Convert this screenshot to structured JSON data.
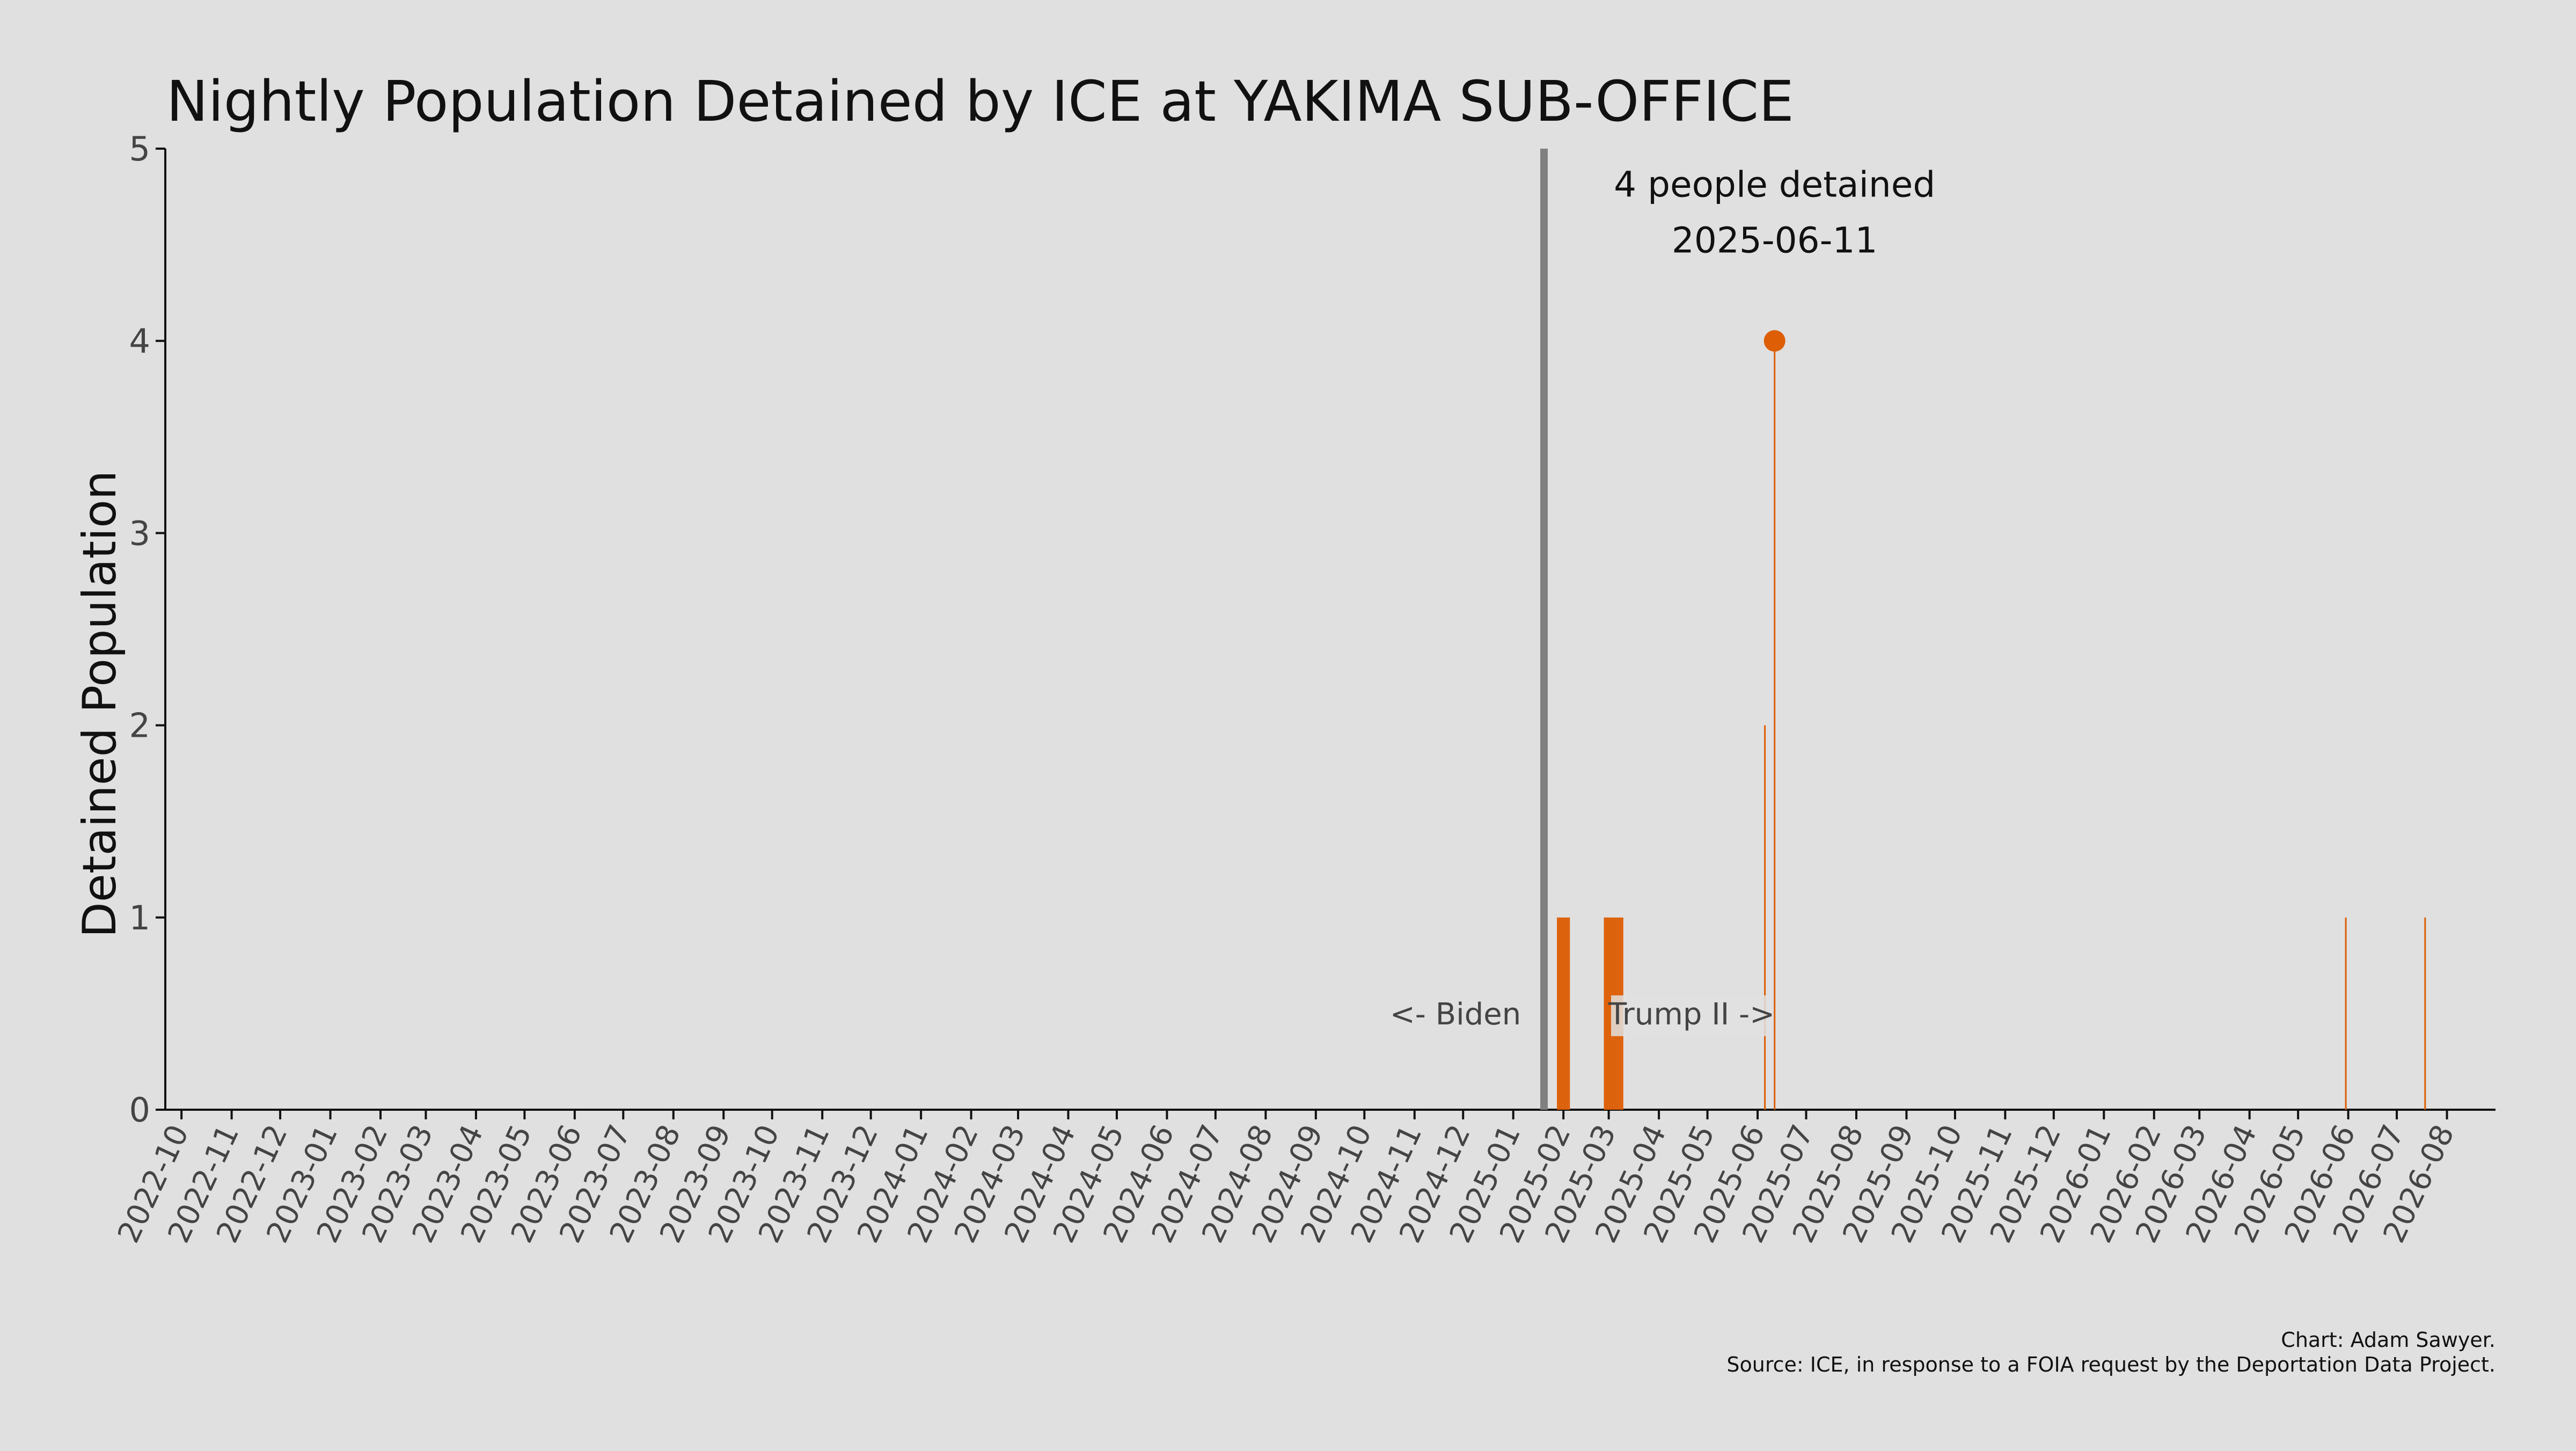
{
  "chart_data": {
    "type": "bar",
    "title": "Nightly Population Detained by ICE at YAKIMA SUB-OFFICE",
    "xlabel": "",
    "ylabel": "Detained Population",
    "ylim": [
      0,
      5
    ],
    "yticks": [
      0,
      1,
      2,
      3,
      4,
      5
    ],
    "xlim": [
      "2022-09-21",
      "2026-08-31"
    ],
    "xtick_labels": [
      "2022-10",
      "2022-11",
      "2022-12",
      "2023-01",
      "2023-02",
      "2023-03",
      "2023-04",
      "2023-05",
      "2023-06",
      "2023-07",
      "2023-08",
      "2023-09",
      "2023-10",
      "2023-11",
      "2023-12",
      "2024-01",
      "2024-02",
      "2024-03",
      "2024-04",
      "2024-05",
      "2024-06",
      "2024-07",
      "2024-08",
      "2024-09",
      "2024-10",
      "2024-11",
      "2024-12",
      "2025-01",
      "2025-02",
      "2025-03",
      "2025-04",
      "2025-05",
      "2025-06",
      "2025-07",
      "2025-08",
      "2025-09",
      "2025-10",
      "2025-11",
      "2025-12",
      "2026-01",
      "2026-02",
      "2026-03",
      "2026-04",
      "2026-05",
      "2026-06",
      "2026-07",
      "2026-08"
    ],
    "grid": false,
    "legend": "none",
    "bar_color": "#dd5e05",
    "series": [
      {
        "points": [
          {
            "x": "2025-01-28",
            "y": 1
          },
          {
            "x": "2025-01-29",
            "y": 1
          },
          {
            "x": "2025-01-30",
            "y": 1
          },
          {
            "x": "2025-01-31",
            "y": 1
          },
          {
            "x": "2025-02-01",
            "y": 1
          },
          {
            "x": "2025-02-02",
            "y": 1
          },
          {
            "x": "2025-02-03",
            "y": 1
          },
          {
            "x": "2025-02-04",
            "y": 1
          },
          {
            "x": "2025-02-26",
            "y": 1
          },
          {
            "x": "2025-02-27",
            "y": 1
          },
          {
            "x": "2025-02-28",
            "y": 1
          },
          {
            "x": "2025-03-01",
            "y": 1
          },
          {
            "x": "2025-03-02",
            "y": 1
          },
          {
            "x": "2025-03-03",
            "y": 1
          },
          {
            "x": "2025-03-04",
            "y": 1
          },
          {
            "x": "2025-03-05",
            "y": 1
          },
          {
            "x": "2025-03-06",
            "y": 1
          },
          {
            "x": "2025-03-07",
            "y": 1
          },
          {
            "x": "2025-03-08",
            "y": 1
          },
          {
            "x": "2025-03-09",
            "y": 1
          },
          {
            "x": "2025-06-05",
            "y": 2
          },
          {
            "x": "2025-06-11",
            "y": 4
          },
          {
            "x": "2026-05-30",
            "y": 1
          },
          {
            "x": "2026-07-18",
            "y": 1
          }
        ]
      }
    ],
    "divider": {
      "x": "2025-01-20",
      "color": "#808080",
      "left_label": "<- Biden",
      "right_label": "Trump II ->"
    },
    "highlight": {
      "x": "2025-06-11",
      "y": 4,
      "line1": "4 people detained",
      "line2": "2025-06-11"
    },
    "footer": {
      "credit": "Chart: Adam Sawyer.",
      "source": "Source: ICE, in response to a FOIA request by the Deportation Data Project."
    }
  }
}
